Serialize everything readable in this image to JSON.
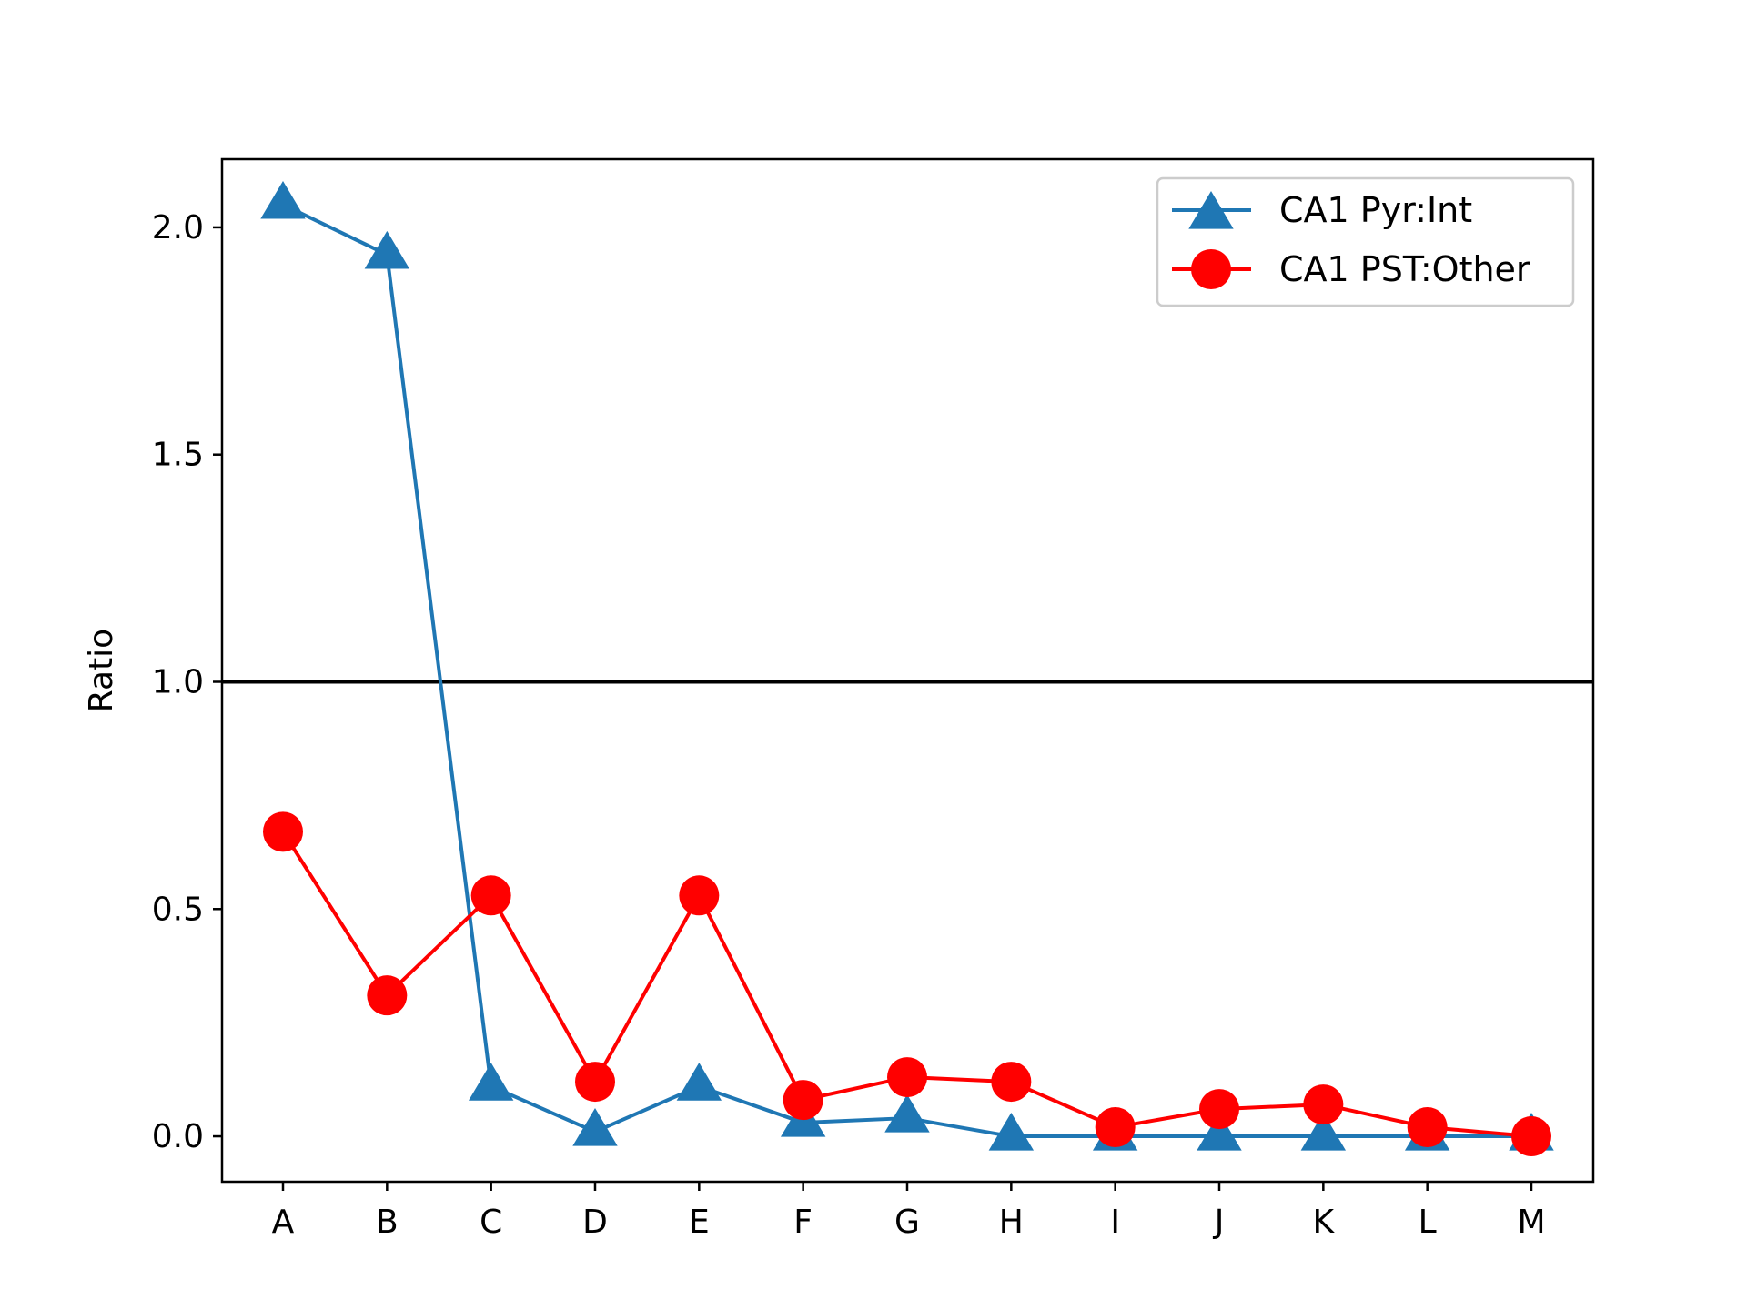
{
  "chart_data": {
    "type": "line",
    "title": "",
    "xlabel": "",
    "ylabel": "Ratio",
    "categories": [
      "A",
      "B",
      "C",
      "D",
      "E",
      "F",
      "G",
      "H",
      "I",
      "J",
      "K",
      "L",
      "M"
    ],
    "ylim": [
      -0.1,
      2.15
    ],
    "yticks": [
      "0.0",
      "0.5",
      "1.0",
      "1.5",
      "2.0"
    ],
    "reference_line": {
      "y": 1.0,
      "color": "#000000"
    },
    "series": [
      {
        "name": "CA1 Pyr:Int",
        "color": "#1f77b4",
        "marker": "triangle",
        "values": [
          2.05,
          1.94,
          0.11,
          0.01,
          0.11,
          0.03,
          0.04,
          0.0,
          0.0,
          0.0,
          0.0,
          0.0,
          0.0
        ]
      },
      {
        "name": "CA1 PST:Other",
        "color": "#ff0000",
        "marker": "circle",
        "values": [
          0.67,
          0.31,
          0.53,
          0.12,
          0.53,
          0.08,
          0.13,
          0.12,
          0.02,
          0.06,
          0.07,
          0.02,
          0.0
        ]
      }
    ],
    "grid": false,
    "legend_position": "top-right"
  }
}
